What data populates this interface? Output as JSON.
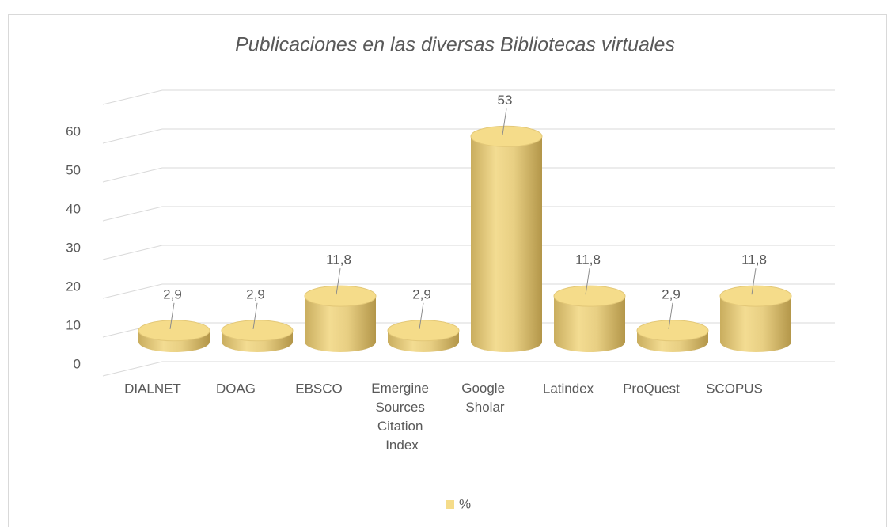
{
  "chart_data": {
    "type": "bar",
    "title": "Publicaciones en las diversas Bibliotecas virtuales",
    "categories": [
      "DIALNET",
      "DOAG",
      "EBSCO",
      "Emergine Sources Citation Index",
      "Google Sholar",
      "Latindex",
      "ProQuest",
      "SCOPUS"
    ],
    "series": [
      {
        "name": "%",
        "color": "#f5dc8a",
        "values": [
          2.9,
          2.9,
          11.8,
          2.9,
          53,
          11.8,
          2.9,
          11.8
        ],
        "value_labels": [
          "2,9",
          "2,9",
          "11,8",
          "2,9",
          "53",
          "11,8",
          "2,9",
          "11,8"
        ]
      }
    ],
    "ylim": [
      0,
      70
    ],
    "yticks": [
      0,
      10,
      20,
      30,
      40,
      50,
      60
    ],
    "grid": true,
    "legend": "bottom"
  }
}
